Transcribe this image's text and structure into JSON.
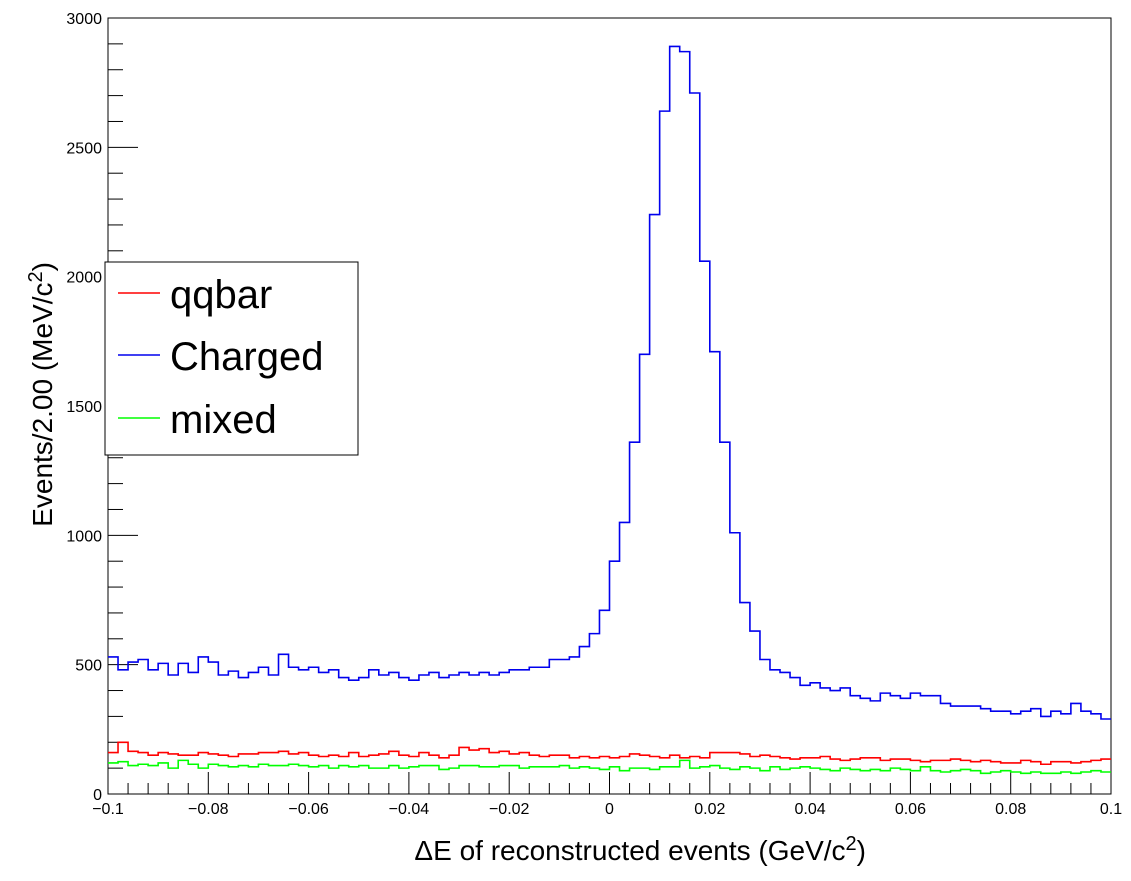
{
  "chart_data": {
    "type": "histogram",
    "title": "",
    "xlabel_prefix": "ΔE of reconstructed events  (GeV/c",
    "xlabel_sup": "2",
    "xlabel_suffix": ")",
    "ylabel_main": "Events/2.00 (MeV/c",
    "ylabel_sup": "2",
    "ylabel_suffix": ")",
    "xlim": [
      -0.1,
      0.1
    ],
    "ylim": [
      0,
      3000
    ],
    "bin_width": 0.002,
    "x_ticks": [
      -0.1,
      -0.08,
      -0.06,
      -0.04,
      -0.02,
      0,
      0.02,
      0.04,
      0.06,
      0.08,
      0.1
    ],
    "x_tick_labels": [
      "−0.1",
      "−0.08",
      "−0.06",
      "−0.04",
      "−0.02",
      "0",
      "0.02",
      "0.04",
      "0.06",
      "0.08",
      "0.1"
    ],
    "y_ticks": [
      0,
      500,
      1000,
      1500,
      2000,
      2500,
      3000
    ],
    "y_tick_labels": [
      "0",
      "500",
      "1000",
      "1500",
      "2000",
      "2500",
      "3000"
    ],
    "legend_position": "left",
    "series": [
      {
        "name": "qqbar",
        "color": "#ff0000",
        "values": [
          160,
          200,
          165,
          160,
          150,
          160,
          155,
          150,
          150,
          160,
          155,
          150,
          145,
          155,
          155,
          160,
          160,
          165,
          155,
          160,
          150,
          145,
          150,
          145,
          160,
          145,
          150,
          155,
          165,
          150,
          145,
          160,
          150,
          140,
          150,
          180,
          170,
          175,
          160,
          165,
          155,
          160,
          150,
          145,
          150,
          150,
          140,
          145,
          140,
          145,
          140,
          145,
          155,
          150,
          145,
          140,
          150,
          140,
          145,
          140,
          160,
          160,
          160,
          155,
          145,
          150,
          145,
          140,
          135,
          140,
          140,
          145,
          135,
          130,
          135,
          140,
          140,
          130,
          135,
          135,
          130,
          125,
          130,
          130,
          135,
          130,
          125,
          130,
          125,
          120,
          120,
          130,
          125,
          115,
          125,
          125,
          120,
          125,
          130,
          135
        ]
      },
      {
        "name": "Charged",
        "color": "#0000ee",
        "values": [
          530,
          480,
          510,
          520,
          480,
          505,
          460,
          505,
          470,
          530,
          510,
          460,
          475,
          450,
          470,
          490,
          460,
          540,
          490,
          480,
          490,
          470,
          480,
          450,
          440,
          450,
          480,
          460,
          470,
          450,
          440,
          460,
          470,
          450,
          460,
          470,
          460,
          470,
          460,
          470,
          480,
          480,
          490,
          490,
          520,
          520,
          530,
          570,
          620,
          710,
          900,
          1050,
          1360,
          1700,
          2240,
          2640,
          2890,
          2870,
          2710,
          2060,
          1710,
          1360,
          1010,
          740,
          630,
          520,
          480,
          470,
          450,
          420,
          430,
          410,
          400,
          410,
          380,
          370,
          360,
          390,
          380,
          370,
          390,
          380,
          380,
          350,
          340,
          340,
          340,
          330,
          320,
          320,
          310,
          320,
          330,
          300,
          320,
          310,
          350,
          320,
          310,
          290
        ]
      },
      {
        "name": "mixed",
        "color": "#00ff00",
        "values": [
          120,
          125,
          110,
          115,
          110,
          120,
          100,
          130,
          115,
          100,
          115,
          110,
          105,
          110,
          105,
          115,
          110,
          110,
          115,
          110,
          105,
          110,
          100,
          110,
          105,
          110,
          100,
          100,
          110,
          100,
          105,
          110,
          110,
          95,
          100,
          110,
          110,
          105,
          105,
          110,
          110,
          100,
          105,
          105,
          105,
          110,
          100,
          105,
          100,
          95,
          105,
          90,
          100,
          100,
          95,
          105,
          105,
          130,
          100,
          105,
          110,
          100,
          95,
          105,
          100,
          90,
          105,
          95,
          100,
          105,
          100,
          95,
          90,
          100,
          95,
          90,
          95,
          90,
          100,
          95,
          90,
          105,
          90,
          85,
          90,
          95,
          90,
          80,
          85,
          90,
          85,
          80,
          85,
          80,
          80,
          85,
          80,
          85,
          90,
          85
        ]
      }
    ]
  }
}
